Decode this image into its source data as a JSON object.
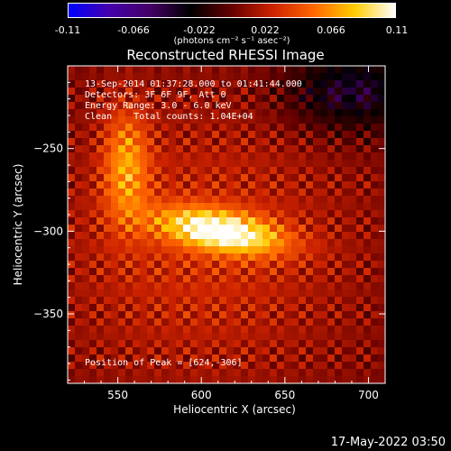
{
  "colorbar": {
    "ticks": [
      "-0.11",
      "-0.066",
      "-0.022",
      "0.022",
      "0.066",
      "0.11"
    ],
    "tick_values": [
      -0.11,
      -0.066,
      -0.022,
      0.022,
      0.066,
      0.11
    ],
    "units": "(photons cm⁻² s⁻¹ asec⁻²)",
    "colors": [
      "#0000ff",
      "#4400aa",
      "#440066",
      "#000000",
      "#660000",
      "#cc2200",
      "#ff6600",
      "#ffcc00",
      "#ffffff"
    ]
  },
  "chart_data": {
    "type": "heatmap",
    "title": "Reconstructed RHESSI Image",
    "xlabel": "Heliocentric X (arcsec)",
    "ylabel": "Heliocentric Y (arcsec)",
    "xlim": [
      520,
      710
    ],
    "ylim": [
      -392,
      -200
    ],
    "x_ticks": [
      550,
      600,
      650,
      700
    ],
    "y_ticks": [
      -250,
      -300,
      -350
    ],
    "x_tick_labels": [
      "550",
      "600",
      "650",
      "700"
    ],
    "y_tick_labels": [
      "−250",
      "−300",
      "−350"
    ],
    "annotations": [
      "13-Sep-2014 01:37:28.000 to 01:41:44.000",
      "Detectors: 3F 6F 9F, Att 0",
      "Energy Range: 3.0 - 6.0 keV",
      "Clean    Total counts: 1.04E+04",
      "Position of Peak = [624,-306]"
    ],
    "peak": [
      624,
      -306
    ],
    "grid": false
  },
  "footer": {
    "date": "17-May-2022 03:50"
  }
}
